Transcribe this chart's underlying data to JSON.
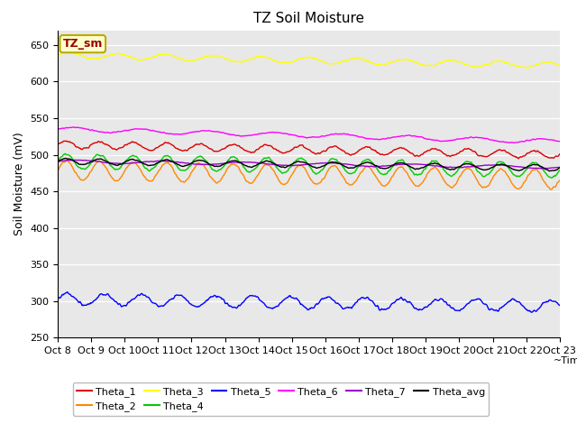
{
  "title": "TZ Soil Moisture",
  "xlabel": "~Time",
  "ylabel": "Soil Moisture (mV)",
  "ylim": [
    250,
    670
  ],
  "xlim": [
    0,
    360
  ],
  "yticks": [
    250,
    300,
    350,
    400,
    450,
    500,
    550,
    600,
    650
  ],
  "xtick_labels": [
    "Oct 8",
    "Oct 9",
    "Oct 10",
    "Oct 11",
    "Oct 12",
    "Oct 13",
    "Oct 14",
    "Oct 15",
    "Oct 16",
    "Oct 17",
    "Oct 18",
    "Oct 19",
    "Oct 20",
    "Oct 21",
    "Oct 22",
    "Oct 23"
  ],
  "n_points": 720,
  "series": {
    "Theta_1": {
      "color": "#dd0000",
      "base": 514,
      "trend": -14,
      "amp": 5,
      "freq": 1.0,
      "noise": 1.0
    },
    "Theta_2": {
      "color": "#ff8800",
      "base": 479,
      "trend": -13,
      "amp": 13,
      "freq": 1.0,
      "noise": 1.0
    },
    "Theta_3": {
      "color": "#ffff00",
      "base": 636,
      "trend": -14,
      "amp": 4,
      "freq": 0.7,
      "noise": 0.8
    },
    "Theta_4": {
      "color": "#00cc00",
      "base": 491,
      "trend": -12,
      "amp": 10,
      "freq": 1.0,
      "noise": 1.0
    },
    "Theta_5": {
      "color": "#0000ff",
      "base": 303,
      "trend": -10,
      "amp": 8,
      "freq": 0.9,
      "noise": 1.5
    },
    "Theta_6": {
      "color": "#ff00ff",
      "base": 535,
      "trend": -17,
      "amp": 3,
      "freq": 0.5,
      "noise": 0.5
    },
    "Theta_7": {
      "color": "#9900cc",
      "base": 491,
      "trend": -8,
      "amp": 2,
      "freq": 0.4,
      "noise": 0.3
    },
    "Theta_avg": {
      "color": "#000000",
      "base": 491,
      "trend": -9,
      "amp": 4,
      "freq": 1.0,
      "noise": 0.5
    }
  },
  "legend_title": "TZ_sm",
  "bg_color": "#e8e8e8",
  "fig_bg": "#ffffff",
  "grid_color": "#ffffff",
  "title_fontsize": 11,
  "axis_fontsize": 9,
  "tick_fontsize": 8
}
